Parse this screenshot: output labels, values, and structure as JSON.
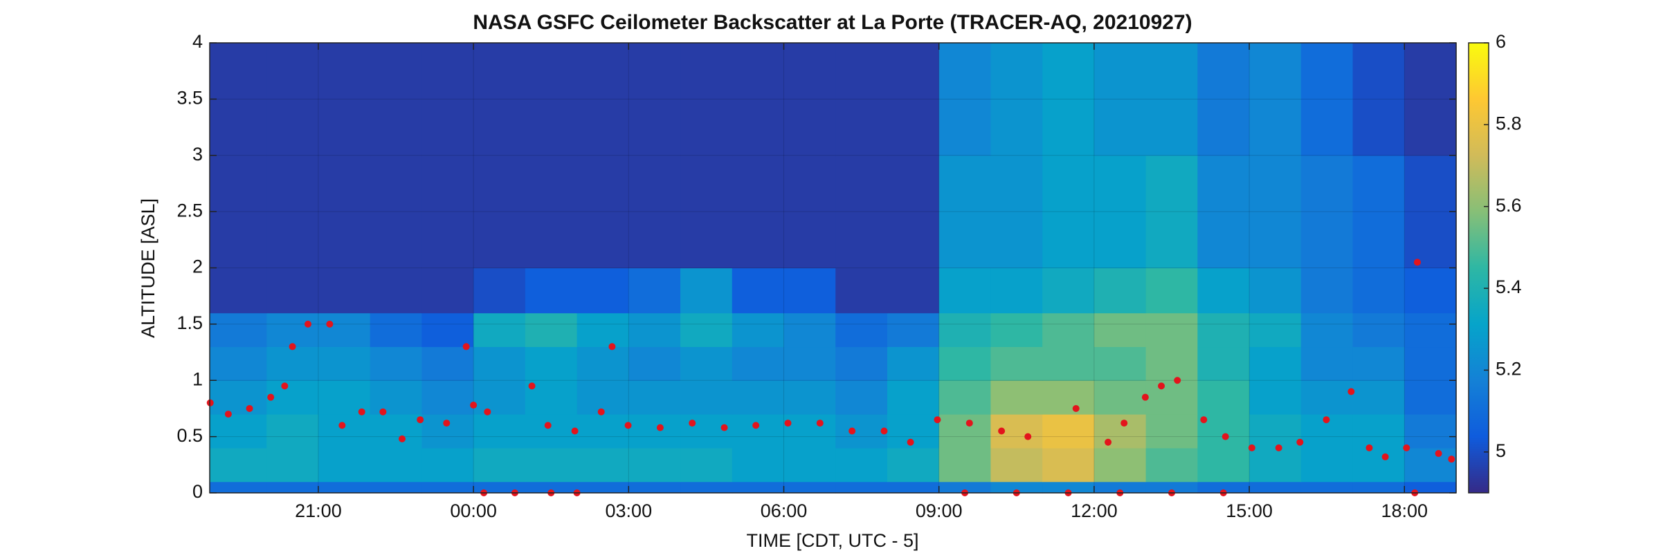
{
  "chart_data": {
    "type": "heatmap",
    "title": "NASA GSFC Ceilometer Backscatter at La Porte (TRACER-AQ, 20210927)",
    "xlabel": "TIME [CDT, UTC - 5]",
    "ylabel": "ALTITUDE [ASL]",
    "xlim": [
      -5.1,
      19.0
    ],
    "ylim": [
      0,
      4
    ],
    "xticks": [
      {
        "value": -3,
        "label": "21:00"
      },
      {
        "value": 0,
        "label": "00:00"
      },
      {
        "value": 3,
        "label": "03:00"
      },
      {
        "value": 6,
        "label": "06:00"
      },
      {
        "value": 9,
        "label": "09:00"
      },
      {
        "value": 12,
        "label": "12:00"
      },
      {
        "value": 15,
        "label": "15:00"
      },
      {
        "value": 18,
        "label": "18:00"
      }
    ],
    "yticks": [
      0,
      0.5,
      1,
      1.5,
      2,
      2.5,
      3,
      3.5,
      4
    ],
    "grid": true,
    "x_edges": [
      -5.1,
      -4,
      -3,
      -2,
      -1,
      0,
      1,
      2,
      3,
      4,
      5,
      6,
      7,
      8,
      9,
      10,
      11,
      12,
      13,
      14,
      15,
      16,
      17,
      18,
      19.0
    ],
    "y_edges": [
      0,
      0.1,
      0.4,
      0.7,
      1.0,
      1.3,
      1.6,
      2.0,
      3.0,
      4.0
    ],
    "z": [
      [
        5.1,
        5.1,
        5.1,
        5.1,
        5.1,
        5.1,
        5.1,
        5.1,
        5.1,
        5.1,
        5.1,
        5.1,
        5.1,
        5.1,
        5.15,
        5.2,
        5.2,
        5.15,
        5.15,
        5.1,
        5.1,
        5.1,
        5.1,
        5.05
      ],
      [
        5.35,
        5.35,
        5.3,
        5.3,
        5.3,
        5.35,
        5.35,
        5.35,
        5.35,
        5.35,
        5.3,
        5.3,
        5.3,
        5.35,
        5.55,
        5.7,
        5.75,
        5.6,
        5.5,
        5.45,
        5.35,
        5.3,
        5.3,
        5.2
      ],
      [
        5.3,
        5.35,
        5.3,
        5.3,
        5.25,
        5.3,
        5.3,
        5.3,
        5.3,
        5.3,
        5.3,
        5.3,
        5.25,
        5.3,
        5.55,
        5.75,
        5.8,
        5.65,
        5.55,
        5.45,
        5.35,
        5.3,
        5.3,
        5.15
      ],
      [
        5.25,
        5.3,
        5.3,
        5.25,
        5.2,
        5.25,
        5.3,
        5.25,
        5.25,
        5.25,
        5.25,
        5.25,
        5.2,
        5.3,
        5.5,
        5.6,
        5.6,
        5.55,
        5.55,
        5.45,
        5.3,
        5.25,
        5.25,
        5.1
      ],
      [
        5.2,
        5.25,
        5.25,
        5.2,
        5.15,
        5.25,
        5.3,
        5.25,
        5.2,
        5.25,
        5.2,
        5.2,
        5.15,
        5.25,
        5.45,
        5.5,
        5.5,
        5.5,
        5.55,
        5.4,
        5.3,
        5.2,
        5.2,
        5.1
      ],
      [
        5.15,
        5.2,
        5.2,
        5.1,
        5.05,
        5.35,
        5.4,
        5.3,
        5.25,
        5.35,
        5.25,
        5.2,
        5.1,
        5.15,
        5.4,
        5.45,
        5.5,
        5.55,
        5.55,
        5.4,
        5.35,
        5.2,
        5.15,
        5.1
      ],
      [
        4.95,
        4.95,
        4.95,
        4.95,
        4.95,
        5.0,
        5.05,
        5.05,
        5.1,
        5.25,
        5.05,
        5.05,
        4.95,
        4.95,
        5.3,
        5.3,
        5.35,
        5.4,
        5.45,
        5.3,
        5.25,
        5.15,
        5.1,
        5.05
      ],
      [
        4.95,
        4.95,
        4.95,
        4.95,
        4.95,
        4.95,
        4.95,
        4.95,
        4.95,
        4.95,
        4.95,
        4.95,
        4.95,
        4.95,
        5.25,
        5.25,
        5.3,
        5.3,
        5.35,
        5.2,
        5.2,
        5.15,
        5.1,
        5.0
      ],
      [
        4.95,
        4.95,
        4.95,
        4.95,
        4.95,
        4.95,
        4.95,
        4.95,
        4.95,
        4.95,
        4.95,
        4.95,
        4.95,
        4.95,
        5.2,
        5.25,
        5.3,
        5.25,
        5.25,
        5.15,
        5.2,
        5.1,
        5.0,
        4.95
      ]
    ],
    "colormap": [
      "#352a87",
      "#0f5cdd",
      "#1481d6",
      "#06a4ca",
      "#2eb7a4",
      "#87bf77",
      "#d1bb59",
      "#fec832",
      "#f9fb0e"
    ],
    "colorbar": {
      "clim": [
        4.9,
        6
      ],
      "ticks": [
        5,
        5.2,
        5.4,
        5.6,
        5.8,
        6
      ]
    },
    "overlay": {
      "type": "scatter",
      "color": "#e3141c",
      "x": [
        -5.09,
        -4.74,
        -4.33,
        -3.92,
        -3.65,
        -3.5,
        -3.2,
        -2.78,
        -2.54,
        -2.16,
        -1.75,
        -1.38,
        -1.03,
        -0.52,
        -0.14,
        0,
        0.27,
        1.13,
        1.44,
        1.96,
        2.47,
        2.68,
        2.99,
        3.61,
        4.23,
        4.85,
        5.46,
        6.08,
        6.7,
        7.32,
        7.94,
        8.45,
        8.97,
        9.59,
        10.21,
        10.72,
        11.65,
        12.27,
        12.58,
        12.99,
        13.3,
        13.61,
        14.12,
        14.54,
        15.05,
        15.57,
        15.98,
        16.49,
        16.97,
        17.32,
        17.63,
        18.04,
        18.25,
        18.66,
        18.91,
        0.2,
        0.8,
        1.5,
        2.0,
        9.5,
        10.5,
        11.5,
        12.5,
        13.5,
        14.5,
        18.2
      ],
      "y": [
        0.8,
        0.7,
        0.75,
        0.85,
        0.95,
        1.3,
        1.5,
        1.5,
        0.6,
        0.72,
        0.72,
        0.48,
        0.65,
        0.62,
        1.3,
        0.78,
        0.72,
        0.95,
        0.6,
        0.55,
        0.72,
        1.3,
        0.6,
        0.58,
        0.62,
        0.58,
        0.6,
        0.62,
        0.62,
        0.55,
        0.55,
        0.45,
        0.65,
        0.62,
        0.55,
        0.5,
        0.75,
        0.45,
        0.62,
        0.85,
        0.95,
        1.0,
        0.65,
        0.5,
        0.4,
        0.4,
        0.45,
        0.65,
        0.9,
        0.4,
        0.32,
        0.4,
        2.05,
        0.35,
        0.3,
        0,
        0,
        0,
        0,
        0,
        0,
        0,
        0,
        0,
        0,
        0
      ]
    }
  }
}
